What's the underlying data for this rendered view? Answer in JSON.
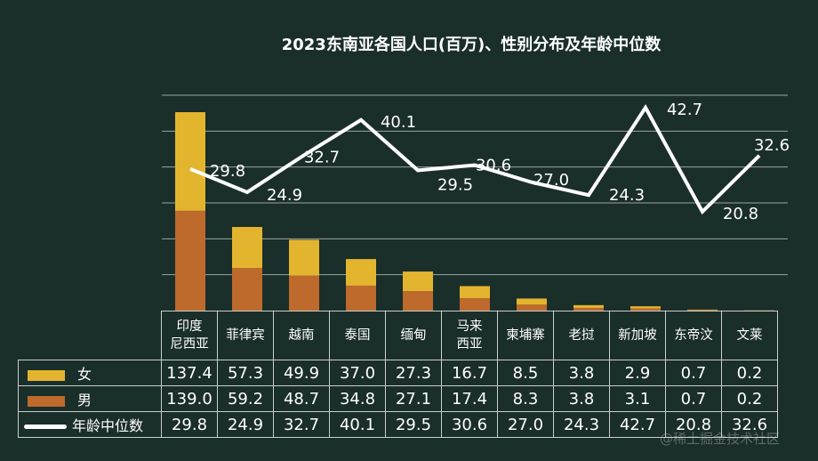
{
  "chart_data": {
    "type": "bar",
    "stacked": true,
    "title": "2023东南亚各国人口(百万)、性别分布及年龄中位数",
    "categories": [
      "印度尼西亚",
      "菲律宾",
      "越南",
      "泰国",
      "缅甸",
      "马来西亚",
      "柬埔寨",
      "老挝",
      "新加坡",
      "东帝汶",
      "文莱"
    ],
    "series": [
      {
        "name": "男",
        "type": "bar",
        "color": "#bd6a2c",
        "values": [
          139.0,
          59.2,
          48.7,
          34.8,
          27.1,
          17.4,
          8.3,
          3.8,
          3.1,
          0.7,
          0.2
        ]
      },
      {
        "name": "女",
        "type": "bar",
        "color": "#e3b52f",
        "values": [
          137.4,
          57.3,
          49.9,
          37.0,
          27.3,
          16.7,
          8.5,
          3.8,
          2.9,
          0.7,
          0.2
        ]
      },
      {
        "name": "年龄中位数",
        "type": "line",
        "color": "#ffffff",
        "values": [
          29.8,
          24.9,
          32.7,
          40.1,
          29.5,
          30.6,
          27.0,
          24.3,
          42.7,
          20.8,
          32.6
        ],
        "data_labels": [
          "29.8",
          "24.9",
          "32.7",
          "40.1",
          "29.5",
          "30.6",
          "27.0",
          "24.3",
          "42.7",
          "20.8",
          "32.6"
        ]
      }
    ],
    "ylim": [
      0,
      300
    ],
    "y2lim": [
      0,
      45.3
    ],
    "grid": true,
    "data_table": {
      "female_label": "女",
      "male_label": "男",
      "age_label": "年龄中位数",
      "female": [
        "137.4",
        "57.3",
        "49.9",
        "37.0",
        "27.3",
        "16.7",
        "8.5",
        "3.8",
        "2.9",
        "0.7",
        "0.2"
      ],
      "male": [
        "139.0",
        "59.2",
        "48.7",
        "34.8",
        "27.1",
        "17.4",
        "8.3",
        "3.8",
        "3.1",
        "0.7",
        "0.2"
      ],
      "age": [
        "29.8",
        "24.9",
        "32.7",
        "40.1",
        "29.5",
        "30.6",
        "27.0",
        "24.3",
        "42.7",
        "20.8",
        "32.6"
      ],
      "headers": [
        [
          "印度",
          "尼西亚"
        ],
        [
          "菲律宾"
        ],
        [
          "越南"
        ],
        [
          "泰国"
        ],
        [
          "缅甸"
        ],
        [
          "马来",
          "西亚"
        ],
        [
          "柬埔寨"
        ],
        [
          "老挝"
        ],
        [
          "新加坡"
        ],
        [
          "东帝汶"
        ],
        [
          "文莱"
        ]
      ]
    }
  },
  "watermark": "@稀土掘金技术社区"
}
